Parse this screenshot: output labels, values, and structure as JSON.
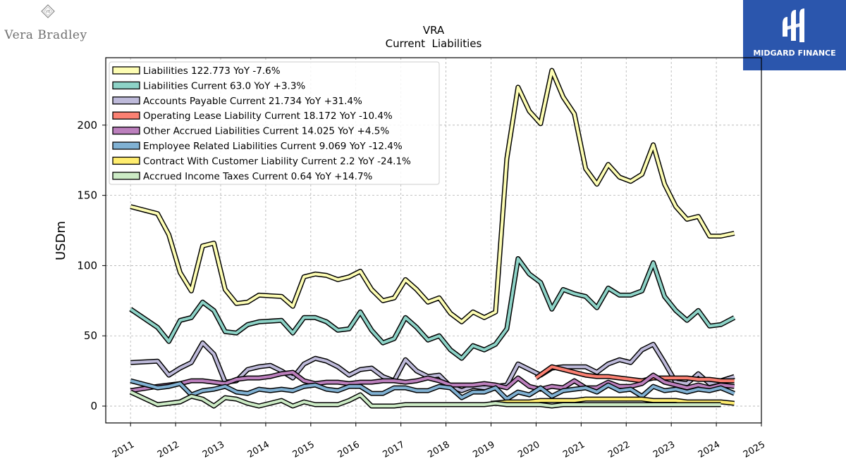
{
  "branding": {
    "left_logo_text": "Vera Bradley",
    "left_logo_icon": "vb-diamond-icon",
    "right_logo_text": "MIDGARD FINANCE",
    "right_logo_icon": "midgard-logo-icon",
    "right_bg_color": "#2b56ad"
  },
  "chart_data": {
    "type": "line",
    "title": "VRA",
    "subtitle": "Current  Liabilities",
    "ylabel": "USDm",
    "xlabel": "",
    "ylim": [
      -12,
      248
    ],
    "xlim": [
      2010.45,
      2025.0
    ],
    "yticks": [
      0,
      50,
      100,
      150,
      200
    ],
    "xticks": [
      "2011",
      "2012",
      "2013",
      "2014",
      "2015",
      "2016",
      "2017",
      "2018",
      "2019",
      "2020",
      "2021",
      "2022",
      "2023",
      "2024",
      "2025"
    ],
    "grid": true,
    "legend_position": "top-left",
    "series": [
      {
        "name": "Liabilities",
        "legend": "Liabilities  122.773 YoY -7.6%",
        "color": "#fdfdb3",
        "x": [
          2011.0,
          2011.6,
          2011.85,
          2012.1,
          2012.35,
          2012.6,
          2012.85,
          2013.1,
          2013.35,
          2013.6,
          2013.85,
          2014.35,
          2014.6,
          2014.85,
          2015.1,
          2015.35,
          2015.6,
          2015.85,
          2016.1,
          2016.35,
          2016.6,
          2016.85,
          2017.1,
          2017.35,
          2017.6,
          2017.85,
          2018.1,
          2018.35,
          2018.6,
          2018.85,
          2019.1,
          2019.35,
          2019.6,
          2019.85,
          2020.1,
          2020.35,
          2020.6,
          2020.85,
          2021.1,
          2021.35,
          2021.6,
          2021.85,
          2022.1,
          2022.35,
          2022.6,
          2022.85,
          2023.1,
          2023.35,
          2023.6,
          2023.85,
          2024.1,
          2024.4
        ],
        "y": [
          142,
          137,
          122,
          95,
          82,
          114,
          116,
          83,
          73,
          74,
          79,
          78,
          71,
          92,
          94,
          93,
          90,
          92,
          96,
          83,
          75,
          77,
          90,
          83,
          74,
          77,
          66,
          60,
          67,
          63,
          67,
          176,
          227,
          210,
          201,
          239,
          220,
          208,
          169,
          158,
          172,
          163,
          160,
          165,
          186,
          158,
          142,
          133,
          135,
          121,
          121,
          123
        ]
      },
      {
        "name": "Liabilities Current",
        "legend": "Liabilities Current  63.0 YoY +3.3%",
        "color": "#8dd3c7",
        "x": [
          2011.0,
          2011.6,
          2011.85,
          2012.1,
          2012.35,
          2012.6,
          2012.85,
          2013.1,
          2013.35,
          2013.6,
          2013.85,
          2014.35,
          2014.6,
          2014.85,
          2015.1,
          2015.35,
          2015.6,
          2015.85,
          2016.1,
          2016.35,
          2016.6,
          2016.85,
          2017.1,
          2017.35,
          2017.6,
          2017.85,
          2018.1,
          2018.35,
          2018.6,
          2018.85,
          2019.1,
          2019.35,
          2019.6,
          2019.85,
          2020.1,
          2020.35,
          2020.6,
          2020.85,
          2021.1,
          2021.35,
          2021.6,
          2021.85,
          2022.1,
          2022.35,
          2022.6,
          2022.85,
          2023.1,
          2023.35,
          2023.6,
          2023.85,
          2024.1,
          2024.4
        ],
        "y": [
          69,
          56,
          46,
          61,
          63,
          74,
          68,
          53,
          52,
          58,
          60,
          61,
          52,
          63,
          63,
          60,
          54,
          55,
          67,
          54,
          45,
          48,
          63,
          56,
          47,
          50,
          40,
          34,
          43,
          40,
          44,
          55,
          105,
          94,
          88,
          69,
          83,
          80,
          78,
          70,
          84,
          79,
          79,
          82,
          102,
          78,
          68,
          61,
          68,
          57,
          58,
          63
        ]
      },
      {
        "name": "Accounts Payable Current",
        "legend": "Accounts Payable Current  21.734 YoY +31.4%",
        "color": "#bebada",
        "x": [
          2011.0,
          2011.6,
          2011.85,
          2012.1,
          2012.35,
          2012.6,
          2012.85,
          2013.1,
          2013.35,
          2013.6,
          2013.85,
          2014.1,
          2014.35,
          2014.6,
          2014.85,
          2015.1,
          2015.35,
          2015.6,
          2015.85,
          2016.1,
          2016.35,
          2016.6,
          2016.85,
          2017.1,
          2017.35,
          2017.6,
          2017.85,
          2018.1,
          2018.35,
          2018.6,
          2018.85,
          2019.1,
          2019.35,
          2019.6,
          2019.85,
          2020.1,
          2020.35,
          2020.6,
          2020.85,
          2021.1,
          2021.35,
          2021.6,
          2021.85,
          2022.1,
          2022.35,
          2022.6,
          2022.85,
          2023.1,
          2023.35,
          2023.6,
          2023.85,
          2024.1,
          2024.4
        ],
        "y": [
          31,
          32,
          22,
          27,
          31,
          45,
          37,
          17,
          18,
          26,
          28,
          29,
          25,
          20,
          30,
          34,
          32,
          28,
          22,
          26,
          27,
          21,
          18,
          33,
          25,
          21,
          22,
          14,
          11,
          14,
          13,
          14,
          15,
          30,
          26,
          22,
          27,
          28,
          28,
          28,
          24,
          30,
          33,
          31,
          40,
          44,
          31,
          17,
          16,
          23,
          16,
          18,
          21
        ]
      },
      {
        "name": "Operating Lease Liability Current",
        "legend": "Operating Lease Liability Current  18.172 YoY -10.4%",
        "color": "#fb8072",
        "x": [
          2020.0,
          2020.35,
          2020.6,
          2020.85,
          2021.1,
          2021.35,
          2021.6,
          2021.85,
          2022.1,
          2022.35,
          2022.6,
          2022.85,
          2023.1,
          2023.35,
          2023.6,
          2023.85,
          2024.1,
          2024.4
        ],
        "y": [
          20,
          28,
          26,
          24,
          22,
          21,
          21,
          20,
          19,
          18,
          20,
          20,
          20,
          20,
          19,
          19,
          18,
          18
        ]
      },
      {
        "name": "Other Accrued Liabilities Current",
        "legend": "Other Accrued Liabilities Current  14.025 YoY +4.5%",
        "color": "#bc80bd",
        "x": [
          2011.0,
          2011.6,
          2011.85,
          2012.1,
          2012.35,
          2012.6,
          2012.85,
          2013.1,
          2013.35,
          2013.6,
          2013.85,
          2014.1,
          2014.35,
          2014.6,
          2014.85,
          2015.1,
          2015.35,
          2015.6,
          2015.85,
          2016.1,
          2016.35,
          2016.6,
          2016.85,
          2017.1,
          2017.35,
          2017.6,
          2017.85,
          2018.1,
          2018.35,
          2018.6,
          2018.85,
          2019.1,
          2019.35,
          2019.6,
          2019.85,
          2020.1,
          2020.35,
          2020.6,
          2020.85,
          2021.1,
          2021.35,
          2021.6,
          2021.85,
          2022.1,
          2022.35,
          2022.6,
          2022.85,
          2023.1,
          2023.35,
          2023.6,
          2023.85,
          2024.1,
          2024.4
        ],
        "y": [
          11,
          14,
          15,
          16,
          18,
          18,
          17,
          16,
          19,
          20,
          20,
          21,
          23,
          24,
          18,
          16,
          17,
          17,
          16,
          17,
          17,
          18,
          18,
          17,
          18,
          20,
          18,
          15,
          15,
          15,
          16,
          15,
          13,
          20,
          14,
          12,
          14,
          13,
          18,
          13,
          13,
          17,
          14,
          14,
          16,
          22,
          17,
          15,
          13,
          15,
          13,
          15,
          14
        ]
      },
      {
        "name": "Employee Related Liabilities Current",
        "legend": "Employee Related Liabilities Current  9.069 YoY -12.4%",
        "color": "#80b1d3",
        "x": [
          2011.0,
          2011.6,
          2011.85,
          2012.1,
          2012.35,
          2012.6,
          2012.85,
          2013.1,
          2013.35,
          2013.6,
          2013.85,
          2014.1,
          2014.35,
          2014.6,
          2014.85,
          2015.1,
          2015.35,
          2015.6,
          2015.85,
          2016.1,
          2016.35,
          2016.6,
          2016.85,
          2017.1,
          2017.35,
          2017.6,
          2017.85,
          2018.1,
          2018.35,
          2018.6,
          2018.85,
          2019.1,
          2019.35,
          2019.6,
          2019.85,
          2020.1,
          2020.35,
          2020.6,
          2020.85,
          2021.1,
          2021.35,
          2021.6,
          2021.85,
          2022.1,
          2022.35,
          2022.6,
          2022.85,
          2023.1,
          2023.35,
          2023.6,
          2023.85,
          2024.1,
          2024.4
        ],
        "y": [
          18,
          13,
          14,
          16,
          8,
          11,
          12,
          14,
          10,
          9,
          12,
          11,
          12,
          11,
          14,
          15,
          12,
          11,
          14,
          14,
          9,
          9,
          13,
          13,
          11,
          11,
          14,
          13,
          6,
          10,
          10,
          13,
          5,
          10,
          8,
          13,
          7,
          11,
          12,
          13,
          10,
          15,
          11,
          12,
          7,
          14,
          11,
          12,
          10,
          12,
          11,
          13,
          9
        ]
      },
      {
        "name": "Contract With Customer Liability Current",
        "legend": "Contract With Customer Liability Current  2.2 YoY -24.1%",
        "color": "#ffed6f",
        "x": [
          2019.0,
          2019.35,
          2019.6,
          2019.85,
          2020.1,
          2020.35,
          2020.6,
          2020.85,
          2021.1,
          2021.35,
          2021.6,
          2021.85,
          2022.1,
          2022.35,
          2022.6,
          2022.85,
          2023.1,
          2023.35,
          2023.6,
          2023.85,
          2024.1,
          2024.4
        ],
        "y": [
          2,
          3,
          3,
          3,
          4,
          4,
          4,
          4,
          5,
          5,
          5,
          5,
          5,
          5,
          4,
          4,
          4,
          3,
          3,
          3,
          3,
          2
        ]
      },
      {
        "name": "Accrued Income Taxes Current",
        "legend": "Accrued Income Taxes Current  0.64 YoY +14.7%",
        "color": "#ccebc5",
        "x": [
          2011.0,
          2011.6,
          2011.85,
          2012.1,
          2012.35,
          2012.6,
          2012.85,
          2013.1,
          2013.35,
          2013.6,
          2013.85,
          2014.1,
          2014.35,
          2014.6,
          2014.85,
          2015.1,
          2015.35,
          2015.6,
          2015.85,
          2016.1,
          2016.35,
          2016.6,
          2016.85,
          2017.1,
          2017.35,
          2017.6,
          2017.85,
          2018.1,
          2018.35,
          2018.6,
          2018.85,
          2019.1,
          2019.35,
          2019.6,
          2019.85,
          2020.1,
          2020.35,
          2020.6,
          2020.85,
          2021.1,
          2021.35,
          2021.6,
          2021.85,
          2022.1,
          2022.35,
          2022.6,
          2022.85,
          2023.1,
          2023.35,
          2023.6,
          2023.85,
          2024.1
        ],
        "y": [
          10,
          1,
          2,
          3,
          7,
          5,
          0,
          6,
          5,
          2,
          0,
          2,
          4,
          0,
          3,
          1,
          1,
          1,
          4,
          8,
          0,
          0,
          0,
          1,
          1,
          1,
          1,
          1,
          1,
          1,
          1,
          2,
          1,
          1,
          1,
          1,
          0,
          1,
          1,
          1,
          1,
          1,
          1,
          1,
          1,
          1,
          1,
          1,
          1,
          1,
          1,
          1
        ]
      }
    ]
  }
}
